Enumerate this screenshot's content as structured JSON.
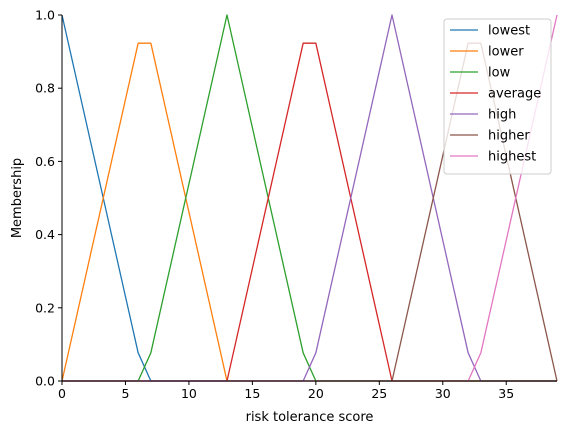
{
  "chart_data": {
    "type": "line",
    "xlabel": "risk tolerance score",
    "ylabel": "Membership",
    "xlim": [
      0,
      39
    ],
    "ylim": [
      0,
      1
    ],
    "xticks": [
      0,
      5,
      10,
      15,
      20,
      25,
      30,
      35
    ],
    "yticks": [
      0.0,
      0.2,
      0.4,
      0.6,
      0.8,
      1.0
    ],
    "grid": false,
    "legend_position": "top-right",
    "series": [
      {
        "name": "lowest",
        "color": "#1f77b4",
        "x": [
          0,
          6,
          7,
          39
        ],
        "y": [
          1.0,
          0.077,
          0.0,
          0.0
        ]
      },
      {
        "name": "lower",
        "color": "#ff7f0e",
        "x": [
          0,
          6,
          7,
          13,
          39
        ],
        "y": [
          0.0,
          0.923,
          0.923,
          0.0,
          0.0
        ]
      },
      {
        "name": "low",
        "color": "#2ca02c",
        "x": [
          0,
          6,
          7,
          13,
          19,
          20,
          39
        ],
        "y": [
          0.0,
          0.0,
          0.077,
          1.0,
          0.077,
          0.0,
          0.0
        ]
      },
      {
        "name": "average",
        "color": "#d62728",
        "x": [
          0,
          13,
          19,
          20,
          26,
          39
        ],
        "y": [
          0.0,
          0.0,
          0.923,
          0.923,
          0.0,
          0.0
        ]
      },
      {
        "name": "high",
        "color": "#9467bd",
        "x": [
          0,
          19,
          20,
          26,
          32,
          33,
          39
        ],
        "y": [
          0.0,
          0.0,
          0.077,
          1.0,
          0.077,
          0.0,
          0.0
        ]
      },
      {
        "name": "higher",
        "color": "#8c564b",
        "x": [
          0,
          26,
          32,
          33,
          39
        ],
        "y": [
          0.0,
          0.0,
          0.923,
          0.923,
          0.0
        ]
      },
      {
        "name": "highest",
        "color": "#e377c2",
        "x": [
          0,
          32,
          33,
          39
        ],
        "y": [
          0.0,
          0.0,
          0.077,
          1.0
        ]
      }
    ]
  }
}
